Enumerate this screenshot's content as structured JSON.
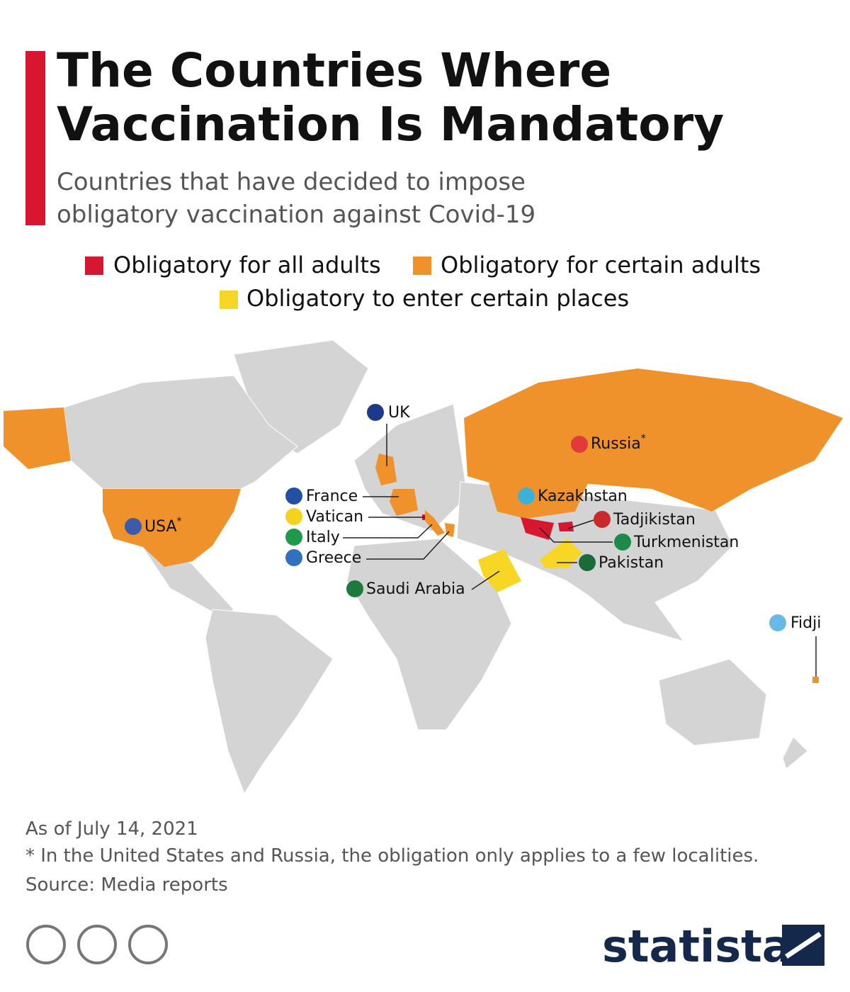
{
  "header": {
    "title": "The Countries Where Vaccination Is Mandatory",
    "subtitle": "Countries that have decided to impose obligatory vaccination against Covid-19"
  },
  "legend": [
    {
      "label": "Obligatory for all adults",
      "color": "#d7172f"
    },
    {
      "label": "Obligatory for certain adults",
      "color": "#f0922b"
    },
    {
      "label": "Obligatory to enter certain places",
      "color": "#f7d625"
    }
  ],
  "countries": [
    {
      "name": "USA",
      "note": "*",
      "category": 1
    },
    {
      "name": "UK",
      "category": 1
    },
    {
      "name": "France",
      "category": 1
    },
    {
      "name": "Vatican",
      "category": 0
    },
    {
      "name": "Italy",
      "category": 1
    },
    {
      "name": "Greece",
      "category": 1
    },
    {
      "name": "Saudi Arabia",
      "category": 2
    },
    {
      "name": "Russia",
      "note": "*",
      "category": 1
    },
    {
      "name": "Kazakhstan",
      "category": 1
    },
    {
      "name": "Tadjikistan",
      "category": 0
    },
    {
      "name": "Turkmenistan",
      "category": 0
    },
    {
      "name": "Pakistan",
      "category": 2
    },
    {
      "name": "Fidji",
      "category": 1
    }
  ],
  "footer": {
    "date": "As of July 14, 2021",
    "note": "* In the United States and Russia, the obligation only applies to a few localities.",
    "source": "Source: Media reports"
  },
  "logo": "statista"
}
